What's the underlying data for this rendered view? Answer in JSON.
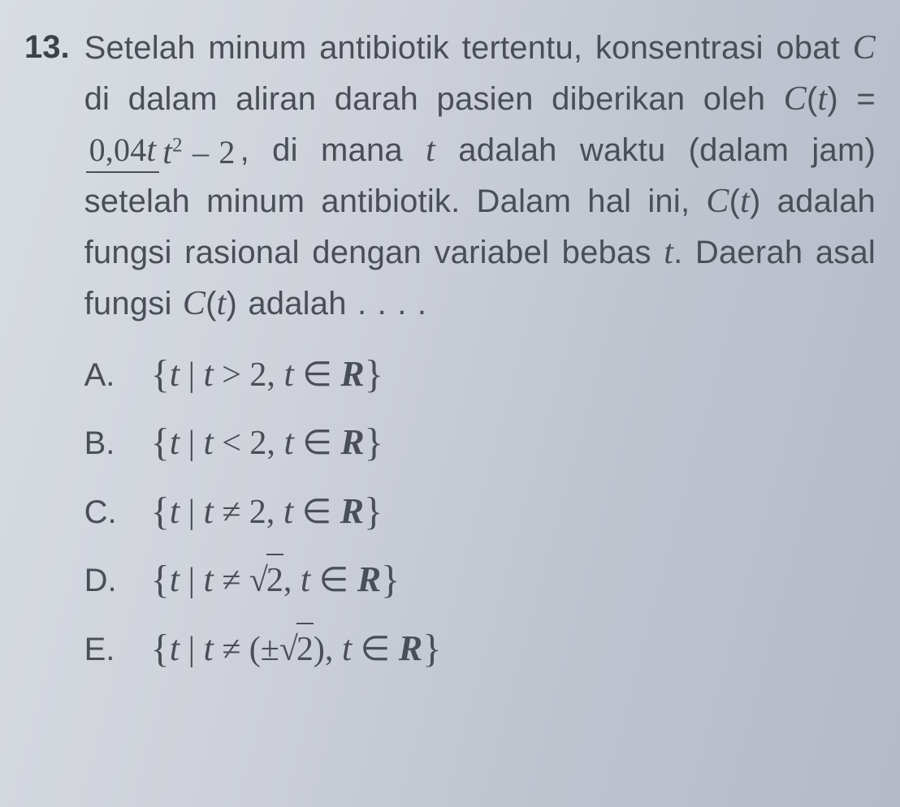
{
  "question": {
    "number": "13.",
    "line1_prefix": "Setelah minum antibiotik tertentu, konsentrasi obat ",
    "line1_var": "C",
    "line1_suffix": " di dalam aliran darah pasien diberikan oleh ",
    "func_lhs_C": "C",
    "func_lhs_open": "(",
    "func_lhs_t": "t",
    "func_lhs_close": ") = ",
    "frac_num_coef": "0,04",
    "frac_num_var": "t",
    "frac_den_var": "t",
    "frac_den_exp": "2",
    "frac_den_suffix": " – 2",
    "after_frac": ", di mana ",
    "after_frac_var": "t",
    "after_frac2": " adalah waktu (dalam jam) setelah minum antibiotik. Dalam hal ini, ",
    "func2_C": "C",
    "func2_open": "(",
    "func2_t": "t",
    "func2_close": ")",
    "after_func2": " adalah fungsi rasional dengan variabel bebas ",
    "var_t2": "t",
    "after_var_t2": ". Daerah asal fungsi ",
    "func3_C": "C",
    "func3_open": "(",
    "func3_t": "t",
    "func3_close": ")",
    "tail": " adalah . . . ."
  },
  "options": {
    "A": {
      "letter": "A.",
      "open": "{",
      "t1": "t",
      "bar": " | ",
      "t2": "t",
      "rel": " > 2, ",
      "t3": "t",
      "elem": " ∈ ",
      "R": "R",
      "close": "}"
    },
    "B": {
      "letter": "B.",
      "open": "{",
      "t1": "t",
      "bar": " | ",
      "t2": "t",
      "rel": " < 2, ",
      "t3": "t",
      "elem": " ∈ ",
      "R": "R",
      "close": "}"
    },
    "C": {
      "letter": "C.",
      "open": "{",
      "t1": "t",
      "bar": " | ",
      "t2": "t",
      "rel": " ≠ 2, ",
      "t3": "t",
      "elem": " ∈ ",
      "R": "R",
      "close": "}"
    },
    "D": {
      "letter": "D.",
      "open": "{",
      "t1": "t",
      "bar": " | ",
      "t2": "t",
      "rel_pre": " ≠ ",
      "rad": "√",
      "root_arg": "2",
      "rel_post": ", ",
      "t3": "t",
      "elem": " ∈ ",
      "R": "R",
      "close": "}"
    },
    "E": {
      "letter": "E.",
      "open": "{",
      "t1": "t",
      "bar": " | ",
      "t2": "t",
      "rel_pre": " ≠ (±",
      "rad": "√",
      "root_arg": "2",
      "rel_post": "), ",
      "t3": "t",
      "elem": " ∈ ",
      "R": "R",
      "close": "}"
    }
  },
  "style": {
    "text_color": "#4a4e56",
    "background_gradient": [
      "#d8dde3",
      "#cfd2da",
      "#bfc4cf",
      "#b4bac8"
    ],
    "font_size_body": 40,
    "font_family_body": "Arial",
    "font_family_math": "Times New Roman",
    "fraction_bar_color": "#4a4e56",
    "fraction_bar_width": 2.5
  }
}
